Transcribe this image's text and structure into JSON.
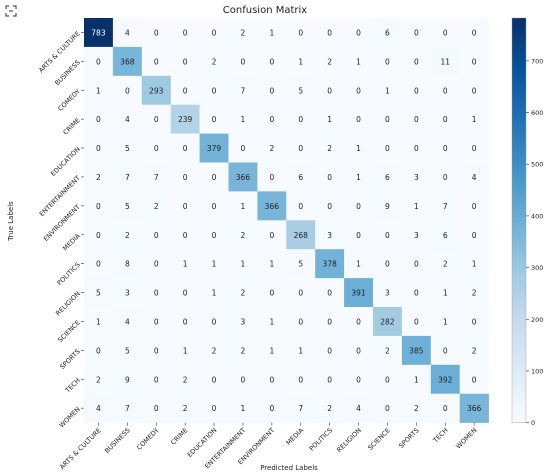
{
  "corner_icon": "expand-icon",
  "chart_data": {
    "type": "heatmap",
    "title": "Confusion Matrix",
    "xlabel": "Predicted Labels",
    "ylabel": "True Labels",
    "categories": [
      "ARTS & CULTURE",
      "BUSINESS",
      "COMEDY",
      "CRIME",
      "EDUCATION",
      "ENTERTAINMENT",
      "ENVIRONMENT",
      "MEDIA",
      "POLITICS",
      "RELIGION",
      "SCIENCE",
      "SPORTS",
      "TECH",
      "WOMEN"
    ],
    "matrix": [
      [
        783,
        4,
        0,
        0,
        0,
        2,
        1,
        0,
        0,
        0,
        6,
        0,
        0,
        0
      ],
      [
        0,
        368,
        0,
        0,
        2,
        0,
        0,
        1,
        2,
        1,
        0,
        0,
        11,
        0
      ],
      [
        1,
        0,
        293,
        0,
        0,
        7,
        0,
        5,
        0,
        0,
        1,
        0,
        0,
        0
      ],
      [
        0,
        4,
        0,
        239,
        0,
        1,
        0,
        0,
        1,
        0,
        0,
        0,
        0,
        1
      ],
      [
        0,
        5,
        0,
        0,
        379,
        0,
        2,
        0,
        2,
        1,
        0,
        0,
        0,
        0
      ],
      [
        2,
        7,
        7,
        0,
        0,
        366,
        0,
        6,
        0,
        1,
        6,
        3,
        0,
        4
      ],
      [
        0,
        5,
        2,
        0,
        0,
        1,
        366,
        0,
        0,
        0,
        9,
        1,
        7,
        0
      ],
      [
        0,
        2,
        0,
        0,
        0,
        2,
        0,
        268,
        3,
        0,
        0,
        3,
        6,
        0
      ],
      [
        0,
        8,
        0,
        1,
        1,
        1,
        1,
        5,
        378,
        1,
        0,
        0,
        2,
        1
      ],
      [
        5,
        3,
        0,
        0,
        1,
        2,
        0,
        0,
        0,
        391,
        3,
        0,
        1,
        2
      ],
      [
        1,
        4,
        0,
        0,
        0,
        3,
        1,
        0,
        0,
        0,
        282,
        0,
        1,
        0
      ],
      [
        0,
        5,
        0,
        1,
        2,
        2,
        1,
        1,
        0,
        0,
        2,
        385,
        0,
        2
      ],
      [
        2,
        9,
        0,
        2,
        0,
        0,
        0,
        0,
        0,
        0,
        0,
        1,
        392,
        0
      ],
      [
        4,
        7,
        0,
        2,
        0,
        1,
        0,
        7,
        2,
        4,
        0,
        2,
        0,
        366
      ]
    ],
    "colorbar": {
      "min": 0,
      "max": 783,
      "ticks": [
        0,
        100,
        200,
        300,
        400,
        500,
        600,
        700
      ]
    },
    "colormap": [
      "#f7fbff",
      "#deebf7",
      "#c6dbef",
      "#9ecae1",
      "#6baed6",
      "#4292c6",
      "#2171b5",
      "#08519c",
      "#08306b"
    ],
    "grid": false
  }
}
